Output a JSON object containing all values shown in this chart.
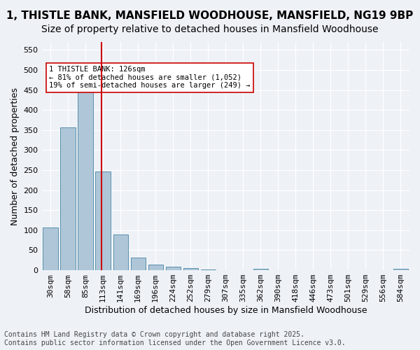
{
  "title_line1": "1, THISTLE BANK, MANSFIELD WOODHOUSE, MANSFIELD, NG19 9BP",
  "title_line2": "Size of property relative to detached houses in Mansfield Woodhouse",
  "xlabel": "Distribution of detached houses by size in Mansfield Woodhouse",
  "ylabel": "Number of detached properties",
  "categories": [
    "30sqm",
    "58sqm",
    "85sqm",
    "113sqm",
    "141sqm",
    "169sqm",
    "196sqm",
    "224sqm",
    "252sqm",
    "279sqm",
    "307sqm",
    "335sqm",
    "362sqm",
    "390sqm",
    "418sqm",
    "446sqm",
    "473sqm",
    "501sqm",
    "529sqm",
    "556sqm",
    "584sqm"
  ],
  "values": [
    106,
    357,
    455,
    246,
    90,
    32,
    14,
    9,
    5,
    2,
    0,
    0,
    4,
    0,
    0,
    0,
    0,
    0,
    0,
    0,
    4
  ],
  "bar_color": "#aec6d8",
  "bar_edge_color": "#5a8fad",
  "vline_x_pos": 2.93,
  "vline_color": "#cc0000",
  "annotation_text": "1 THISTLE BANK: 126sqm\n← 81% of detached houses are smaller (1,052)\n19% of semi-detached houses are larger (249) →",
  "annotation_box_color": "#ffffff",
  "annotation_box_edge_color": "#cc0000",
  "ylim": [
    0,
    570
  ],
  "yticks": [
    0,
    50,
    100,
    150,
    200,
    250,
    300,
    350,
    400,
    450,
    500,
    550
  ],
  "background_color": "#eef2f7",
  "grid_color": "#ffffff",
  "footer": "Contains HM Land Registry data © Crown copyright and database right 2025.\nContains public sector information licensed under the Open Government Licence v3.0.",
  "title_fontsize": 11,
  "subtitle_fontsize": 10,
  "axis_label_fontsize": 9,
  "tick_fontsize": 8,
  "footer_fontsize": 7
}
